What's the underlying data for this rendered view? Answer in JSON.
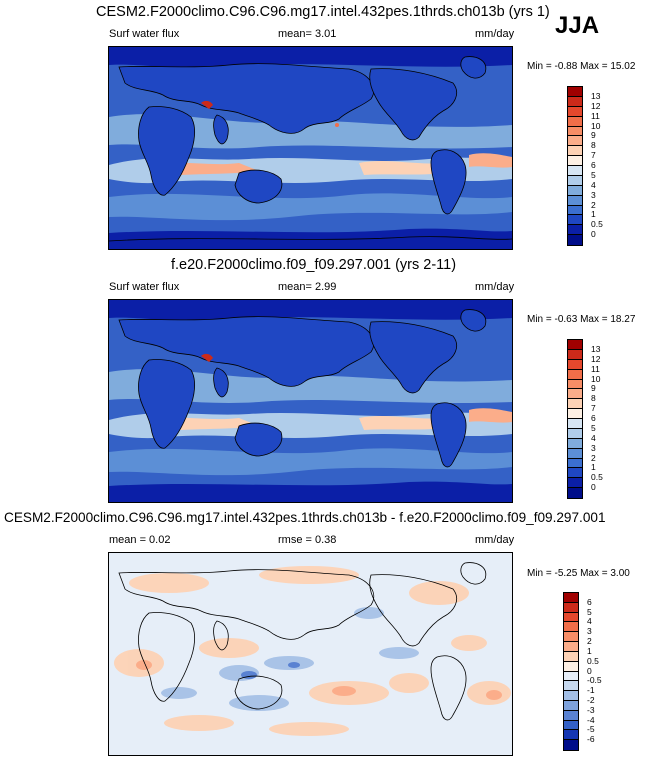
{
  "season": "JJA",
  "panels": [
    {
      "title": "CESM2.F2000climo.C96.C96.mg17.intel.432pes.1thrds.ch013b (yrs 1)",
      "left_label": "Surf water flux",
      "mean_text": "mean=  3.01",
      "units": "mm/day",
      "minmax": "Min = -0.88 Max = 15.02",
      "cbar_labels": [
        "13",
        "12",
        "11",
        "10",
        "9",
        "8",
        "7",
        "6",
        "5",
        "4",
        "3",
        "2",
        "1",
        "0.5",
        "0"
      ],
      "cbar_colors": [
        "#a00000",
        "#cc2a1a",
        "#e5482d",
        "#f16e49",
        "#f78d66",
        "#fbad8a",
        "#fdd2b5",
        "#fdf0e4",
        "#d7e6f4",
        "#b0cdea",
        "#80acdc",
        "#5c8fd6",
        "#3b6fd0",
        "#1f47c3",
        "#0b1fa7",
        "#000d8a"
      ],
      "kind": "abs"
    },
    {
      "title": "f.e20.F2000climo.f09_f09.297.001 (yrs 2-11)",
      "left_label": "Surf water flux",
      "mean_text": "mean=  2.99",
      "units": "mm/day",
      "minmax": "Min = -0.63 Max = 18.27",
      "cbar_labels": [
        "13",
        "12",
        "11",
        "10",
        "9",
        "8",
        "7",
        "6",
        "5",
        "4",
        "3",
        "2",
        "1",
        "0.5",
        "0"
      ],
      "cbar_colors": [
        "#a00000",
        "#cc2a1a",
        "#e5482d",
        "#f16e49",
        "#f78d66",
        "#fbad8a",
        "#fdd2b5",
        "#fdf0e4",
        "#d7e6f4",
        "#b0cdea",
        "#80acdc",
        "#5c8fd6",
        "#3b6fd0",
        "#1f47c3",
        "#0b1fa7",
        "#000d8a"
      ],
      "kind": "abs"
    },
    {
      "title": "CESM2.F2000climo.C96.C96.mg17.intel.432pes.1thrds.ch013b - f.e20.F2000climo.f09_f09.297.001",
      "left_label": "mean =  0.02",
      "mean_text": "rmse =  0.38",
      "units": "mm/day",
      "minmax": "Min = -5.25 Max =  3.00",
      "cbar_labels": [
        "6",
        "5",
        "4",
        "3",
        "2",
        "1",
        "0.5",
        "0",
        "-0.5",
        "-1",
        "-2",
        "-3",
        "-4",
        "-5",
        "-6"
      ],
      "cbar_colors": [
        "#a00000",
        "#cc2a1a",
        "#e5482d",
        "#f16e49",
        "#f78d66",
        "#fbad8a",
        "#fdd2b5",
        "#fdf0e4",
        "#e6eef8",
        "#c7d9ef",
        "#a3bfe6",
        "#7ea2dc",
        "#5a82d2",
        "#3461c6",
        "#1537b3",
        "#000d8a"
      ],
      "kind": "diff"
    }
  ]
}
